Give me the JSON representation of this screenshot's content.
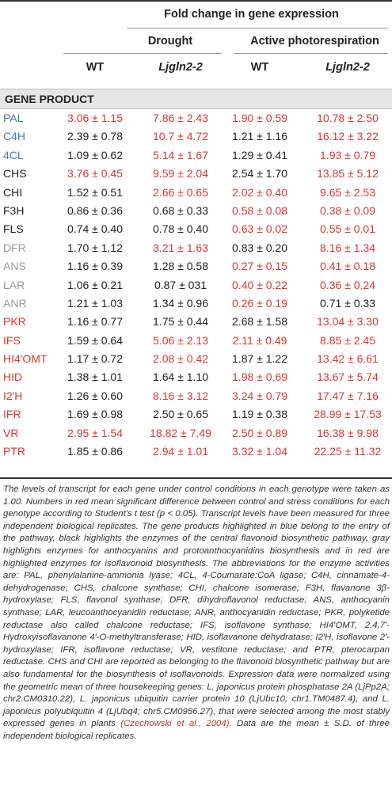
{
  "colors": {
    "blue": "#4a78b5",
    "black": "#222222",
    "gray": "#9a9a9a",
    "red": "#e0362c"
  },
  "header": {
    "fold_title": "Fold change in gene expression",
    "drought": "Drought",
    "photorespiration": "Active photorespiration",
    "wt1": "WT",
    "mut1": "Ljgln2-2",
    "wt2": "WT",
    "mut2": "Ljgln2-2"
  },
  "section_label": "GENE PRODUCT",
  "rows": [
    {
      "name": "PAL",
      "name_color": "blue",
      "cells": [
        {
          "v": "3.06 ± 1.15",
          "red": true
        },
        {
          "v": "7.86 ± 2.43",
          "red": true
        },
        {
          "v": "1.90 ± 0.59",
          "red": true
        },
        {
          "v": "10.78 ± 2.50",
          "red": true
        }
      ]
    },
    {
      "name": "C4H",
      "name_color": "blue",
      "cells": [
        {
          "v": "2.39 ± 0.78",
          "red": false
        },
        {
          "v": "10.7 ± 4.72",
          "red": true
        },
        {
          "v": "1.21 ± 1.16",
          "red": false
        },
        {
          "v": "16.12 ± 3.22",
          "red": true
        }
      ]
    },
    {
      "name": "4CL",
      "name_color": "blue",
      "cells": [
        {
          "v": "1.09 ± 0.62",
          "red": false
        },
        {
          "v": "5.14 ± 1.67",
          "red": true
        },
        {
          "v": "1.29 ± 0.41",
          "red": false
        },
        {
          "v": "1.93 ± 0.79",
          "red": true
        }
      ]
    },
    {
      "name": "CHS",
      "name_color": "black",
      "cells": [
        {
          "v": "3.76 ± 0.45",
          "red": true
        },
        {
          "v": "9.59 ± 2.04",
          "red": true
        },
        {
          "v": "2.54 ± 1.70",
          "red": false
        },
        {
          "v": "13.85 ± 5.12",
          "red": true
        }
      ]
    },
    {
      "name": "CHI",
      "name_color": "black",
      "cells": [
        {
          "v": "1.52 ± 0.51",
          "red": false
        },
        {
          "v": "2.66 ± 0.65",
          "red": true
        },
        {
          "v": "2.02 ± 0.40",
          "red": true
        },
        {
          "v": "9.65 ± 2.53",
          "red": true
        }
      ]
    },
    {
      "name": "F3H",
      "name_color": "black",
      "cells": [
        {
          "v": "0.86 ± 0.36",
          "red": false
        },
        {
          "v": "0.68 ± 0.33",
          "red": false
        },
        {
          "v": "0.58 ± 0.08",
          "red": true
        },
        {
          "v": "0.38 ± 0.09",
          "red": true
        }
      ]
    },
    {
      "name": "FLS",
      "name_color": "black",
      "cells": [
        {
          "v": "0.74 ± 0.40",
          "red": false
        },
        {
          "v": "0.78 ± 0.40",
          "red": false
        },
        {
          "v": "0.63 ± 0.02",
          "red": true
        },
        {
          "v": "0.55 ± 0.01",
          "red": true
        }
      ]
    },
    {
      "name": "DFR",
      "name_color": "gray",
      "cells": [
        {
          "v": "1.70 ± 1.12",
          "red": false
        },
        {
          "v": "3.21 ± 1.63",
          "red": true
        },
        {
          "v": "0.83 ± 0.20",
          "red": false
        },
        {
          "v": "8.16 ± 1.34",
          "red": true
        }
      ]
    },
    {
      "name": "ANS",
      "name_color": "gray",
      "cells": [
        {
          "v": "1.16 ± 0.39",
          "red": false
        },
        {
          "v": "1.28 ± 0.58",
          "red": false
        },
        {
          "v": "0.27 ± 0.15",
          "red": true
        },
        {
          "v": "0.41 ± 0.18",
          "red": true
        }
      ]
    },
    {
      "name": "LAR",
      "name_color": "gray",
      "cells": [
        {
          "v": "1.06 ± 0.21",
          "red": false
        },
        {
          "v": "0.87 ± 031",
          "red": false
        },
        {
          "v": "0.40 ± 0.22",
          "red": true
        },
        {
          "v": "0.36 ± 0.24",
          "red": true
        }
      ]
    },
    {
      "name": "ANR",
      "name_color": "gray",
      "cells": [
        {
          "v": "1.21 ± 1.03",
          "red": false
        },
        {
          "v": "1.34 ± 0.96",
          "red": false
        },
        {
          "v": "0.26 ± 0.19",
          "red": true
        },
        {
          "v": "0.71 ± 0.33",
          "red": false
        }
      ]
    },
    {
      "name": "PKR",
      "name_color": "red",
      "cells": [
        {
          "v": "1.16 ± 0.77",
          "red": false
        },
        {
          "v": "1.75 ± 0.44",
          "red": false
        },
        {
          "v": "2.68 ± 1.58",
          "red": false
        },
        {
          "v": "13.04 ± 3.30",
          "red": true
        }
      ]
    },
    {
      "name": "IFS",
      "name_color": "red",
      "cells": [
        {
          "v": "1.59 ± 0.64",
          "red": false
        },
        {
          "v": "5.06 ± 2.13",
          "red": true
        },
        {
          "v": "2.11 ± 0.49",
          "red": true
        },
        {
          "v": "8.85 ± 2.45",
          "red": true
        }
      ]
    },
    {
      "name": "HI4′OMT",
      "name_color": "red",
      "cells": [
        {
          "v": "1.17 ± 0.72",
          "red": false
        },
        {
          "v": "2.08 ± 0.42",
          "red": true
        },
        {
          "v": "1.87 ± 1.22",
          "red": false
        },
        {
          "v": "13.42 ± 6.61",
          "red": true
        }
      ]
    },
    {
      "name": "HID",
      "name_color": "red",
      "cells": [
        {
          "v": "1.38 ± 1.01",
          "red": false
        },
        {
          "v": "1.64 ± 1.10",
          "red": false
        },
        {
          "v": "1.98 ± 0.69",
          "red": true
        },
        {
          "v": "13.67 ± 5.74",
          "red": true
        }
      ]
    },
    {
      "name": "I2′H",
      "name_color": "red",
      "cells": [
        {
          "v": "1.26 ± 0.60",
          "red": false
        },
        {
          "v": "8.16 ± 3.12",
          "red": true
        },
        {
          "v": "3.24 ± 0.79",
          "red": true
        },
        {
          "v": "17.47 ± 7.16",
          "red": true
        }
      ]
    },
    {
      "name": "IFR",
      "name_color": "red",
      "cells": [
        {
          "v": "1.69 ± 0.98",
          "red": false
        },
        {
          "v": "2.50 ± 0.65",
          "red": false
        },
        {
          "v": "1.19 ± 0.38",
          "red": false
        },
        {
          "v": "28.99 ± 17.53",
          "red": true
        }
      ]
    },
    {
      "name": "VR",
      "name_color": "red",
      "cells": [
        {
          "v": "2.95 ± 1.54",
          "red": true
        },
        {
          "v": "18.82 ± 7.49",
          "red": true
        },
        {
          "v": "2.50 ± 0.89",
          "red": true
        },
        {
          "v": "16.38 ± 9.98",
          "red": true
        }
      ]
    },
    {
      "name": "PTR",
      "name_color": "red",
      "cells": [
        {
          "v": "1.85 ± 0.86",
          "red": false
        },
        {
          "v": "2.94 ± 1.01",
          "red": true
        },
        {
          "v": "3.32 ± 1.04",
          "red": true
        },
        {
          "v": "22.25 ± 11.32",
          "red": true
        }
      ]
    }
  ],
  "footnote": {
    "text": "The levels of transcript for each gene under control conditions in each genotype were taken as 1.00. Numbers in red mean significant difference between control and stress conditions for each genotype according to Student's t test (p < 0.05). Transcript levels have been measured for three independent biological replicates. The gene products highlighted in blue belong to the entry of the pathway, black highlights the enzymes of the central flavonoid biosynthetic pathway, gray highlights enzymes for anthocyanins and protoanthocyanidins biosynthesis and in red are highlighted enzymes for isoflavonoid biosynthesis. The abbreviations for the enzyme activities are: PAL, phenylalanine-ammonia lyase; 4CL, 4-Coumarate:CoA ligase; C4H, cinnamate-4-dehydrogenase; CHS, chalcone synthase; CHI, chalcone isomerase; F3H, flavanone 3β-hydroxylase; FLS, flavonol synthase; DFR, dihydroflavonol reductase; ANS, anthocyanin synthase; LAR, leucoanthocyanidin reductase; ANR, anthocyanidin reductase; PKR, polyketide reductase also called chalcone reductase; IFS, isoflavone synthase; HI4′OMT, 2,4,7′-Hydroxyisoflavanone 4′-O-methyltransferase; HID, isoflavanone dehydratase; I2′H, isoflavone 2′-hydroxylase; IFR, isoflavone reductase; VR, vestitone reductase; and PTR, pterocarpan reductase. CHS and CHI are reported as belonging to the flavonoid biosynthetic pathway but are also fundamental for the biosynthesis of isoflavonoids. Expression data were normalized using the geometric mean of three housekeeping genes: L. japonicus protein phosphatase 2A (LjPp2A; chr2.CM0310.22), L. japonicus ubiquitin carrier protein 10 (LjUbc10; chr1.TM0487.4), and L. japonicus polyubiquitin 4 (LjUbq4; chr5.CM0956.27), that were selected among the most stably expressed genes in plants ",
    "citation": "(Czechowski et al., 2004)",
    "tail": ". Data are the mean ± S.D. of three independent biological replicates."
  }
}
